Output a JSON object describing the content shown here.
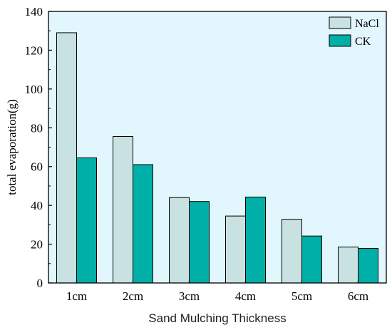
{
  "chart_data": {
    "type": "bar",
    "categories": [
      "1cm",
      "2cm",
      "3cm",
      "4cm",
      "5cm",
      "6cm"
    ],
    "series": [
      {
        "name": "NaCl",
        "values": [
          129,
          75.5,
          44,
          34.5,
          32.8,
          18.5
        ]
      },
      {
        "name": "CK",
        "values": [
          64.5,
          61,
          42,
          44.3,
          24.2,
          17.8
        ]
      }
    ],
    "xlabel": "Sand Mulching Thickness",
    "ylabel": "total evaporation(g)",
    "ylim": [
      0,
      140
    ],
    "yticks": [
      0,
      20,
      40,
      60,
      80,
      100,
      120,
      140
    ],
    "grid": false,
    "legend_position": "top-right",
    "colors": {
      "plot_background": "#E2F6FD",
      "NaCl": "#C8E2E2",
      "CK": "#00AFA8",
      "axis": "#000000"
    }
  }
}
